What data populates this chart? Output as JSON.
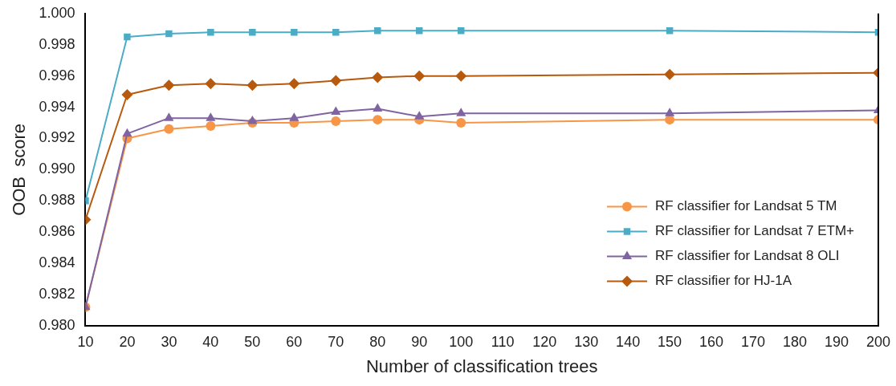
{
  "chart_data": {
    "type": "line",
    "xlabel": "Number of classification trees",
    "ylabel": "OOB  score",
    "x": [
      10,
      20,
      30,
      40,
      50,
      60,
      70,
      80,
      90,
      100,
      150,
      200
    ],
    "series": [
      {
        "name": "RF classifier for Landsat 5 TM",
        "color": "#f79646",
        "marker": "circle",
        "values": [
          0.9812,
          0.992,
          0.9926,
          0.9928,
          0.993,
          0.993,
          0.9931,
          0.9932,
          0.9932,
          0.993,
          0.9932,
          0.9932
        ]
      },
      {
        "name": "RF classifier for Landsat 7 ETM+",
        "color": "#4bacc6",
        "marker": "square",
        "values": [
          0.988,
          0.9985,
          0.9987,
          0.9988,
          0.9988,
          0.9988,
          0.9988,
          0.9989,
          0.9989,
          0.9989,
          0.9989,
          0.9988
        ]
      },
      {
        "name": "RF classifier for Landsat 8 OLI",
        "color": "#8064a2",
        "marker": "triangle",
        "values": [
          0.9812,
          0.9923,
          0.9933,
          0.9933,
          0.9931,
          0.9933,
          0.9937,
          0.9939,
          0.9934,
          0.9936,
          0.9936,
          0.9938
        ]
      },
      {
        "name": "RF classifier for HJ-1A",
        "color": "#b85a0d",
        "marker": "diamond",
        "values": [
          0.9868,
          0.9948,
          0.9954,
          0.9955,
          0.9954,
          0.9955,
          0.9957,
          0.9959,
          0.996,
          0.996,
          0.9961,
          0.9962
        ]
      }
    ],
    "xlim": [
      10,
      200
    ],
    "xticks": [
      10,
      20,
      30,
      40,
      50,
      60,
      70,
      80,
      90,
      100,
      110,
      120,
      130,
      140,
      150,
      160,
      170,
      180,
      190,
      200
    ],
    "ylim": [
      0.98,
      1.0
    ],
    "yticks": [
      {
        "value": 0.98,
        "label": "0.980"
      },
      {
        "value": 0.982,
        "label": "0.982"
      },
      {
        "value": 0.984,
        "label": "0.984"
      },
      {
        "value": 0.986,
        "label": "0.986"
      },
      {
        "value": 0.988,
        "label": "0.988"
      },
      {
        "value": 0.99,
        "label": "0.990"
      },
      {
        "value": 0.992,
        "label": "0.992"
      },
      {
        "value": 0.994,
        "label": "0.994"
      },
      {
        "value": 0.996,
        "label": "0.996"
      },
      {
        "value": 0.998,
        "label": "0.998"
      },
      {
        "value": 1.0,
        "label": "1.000"
      }
    ],
    "grid": false,
    "legend": "bottom right",
    "line_style": "solid"
  }
}
